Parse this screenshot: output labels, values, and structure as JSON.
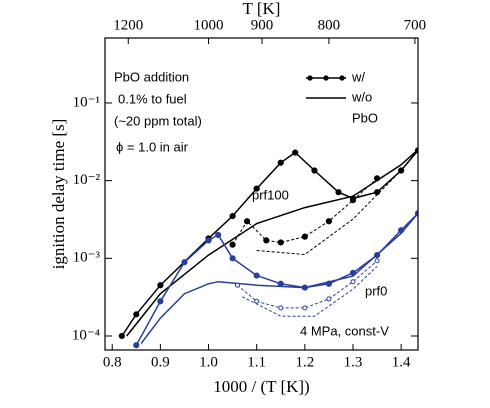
{
  "chart_data": {
    "type": "line",
    "xlabel": "1000 / (T [K])",
    "x2label": "T [K]",
    "ylabel": "ignition delay time [s]",
    "xlim": [
      0.785,
      1.435
    ],
    "xticks": [
      0.8,
      0.9,
      {
        "value": 1,
        "label": "1.0"
      },
      1.1,
      1.2,
      1.3,
      1.4
    ],
    "x2ticks": [
      1200,
      1000,
      900,
      800,
      700
    ],
    "ylim": [
      6.6e-05,
      0.686
    ],
    "yticks": [
      {
        "value": 0.0001,
        "label": "10⁻⁴"
      },
      {
        "value": 0.001,
        "label": "10⁻³"
      },
      {
        "value": 0.01,
        "label": "10⁻²"
      },
      {
        "value": 0.1,
        "label": "10⁻¹"
      }
    ],
    "log_y": true,
    "annotations": [
      "PbO addition",
      "0.1% to fuel",
      "(~20 ppm total)",
      "ϕ = 1.0 in air",
      "prf100",
      "prf0",
      "4 MPa, const-V"
    ],
    "legend": [
      "w/",
      "w/o",
      "PbO"
    ],
    "series": [
      {
        "color": "#000000",
        "marker": "filled",
        "dash": false,
        "x": [
          0.82,
          0.85,
          0.9,
          1.0,
          1.05,
          1.1,
          1.15,
          1.18,
          1.22,
          1.27,
          1.3,
          1.35,
          1.4,
          1.435
        ],
        "values": [
          0.0001,
          0.00019,
          0.00045,
          0.0018,
          0.0035,
          0.0079,
          0.017,
          0.023,
          0.0135,
          0.0071,
          0.0059,
          0.0071,
          0.0135,
          0.0245
        ]
      },
      {
        "color": "#000000",
        "marker": "none",
        "dash": false,
        "x": [
          0.83,
          0.9,
          1.0,
          1.1,
          1.2,
          1.3,
          1.4,
          1.435
        ],
        "values": [
          0.0001,
          0.00035,
          0.0011,
          0.0028,
          0.0045,
          0.0063,
          0.016,
          0.025
        ]
      },
      {
        "color": "#000000",
        "marker": "filled",
        "dash": true,
        "x": [
          1.05,
          1.08,
          1.12,
          1.15,
          1.2,
          1.25,
          1.3,
          1.35
        ],
        "values": [
          0.0015,
          0.003,
          0.0017,
          0.0016,
          0.0019,
          0.003,
          0.0056,
          0.0107
        ]
      },
      {
        "color": "#000000",
        "marker": "none",
        "dash": true,
        "x": [
          1.1,
          1.2,
          1.3,
          1.4
        ],
        "values": [
          0.00126,
          0.00112,
          0.0032,
          0.0135
        ]
      },
      {
        "color": "#2a3f9a",
        "marker": "filled",
        "dash": false,
        "x": [
          0.85,
          0.9,
          0.95,
          1.0,
          1.02,
          1.05,
          1.1,
          1.15,
          1.2,
          1.25,
          1.3,
          1.35,
          1.4,
          1.435
        ],
        "values": [
          7.6e-05,
          0.00028,
          0.00089,
          0.0017,
          0.002,
          0.001,
          0.0006,
          0.00047,
          0.00042,
          0.00047,
          0.00065,
          0.0011,
          0.0023,
          0.0038
        ]
      },
      {
        "color": "#2a3f9a",
        "marker": "none",
        "dash": false,
        "x": [
          0.86,
          0.9,
          0.95,
          1.0,
          1.02,
          1.1,
          1.2,
          1.3,
          1.4,
          1.435
        ],
        "values": [
          8e-05,
          0.00017,
          0.00035,
          0.00047,
          0.0005,
          0.00045,
          0.00042,
          0.00059,
          0.0021,
          0.0038
        ]
      },
      {
        "color": "#2a3f9a",
        "marker": "open",
        "dash": true,
        "x": [
          1.06,
          1.1,
          1.15,
          1.2,
          1.25,
          1.3,
          1.35
        ],
        "values": [
          0.00045,
          0.00028,
          0.00023,
          0.00023,
          0.0003,
          0.0005,
          0.00093
        ]
      },
      {
        "color": "#2a3f9a",
        "marker": "none",
        "dash": true,
        "x": [
          1.07,
          1.15,
          1.22,
          1.3,
          1.35
        ],
        "values": [
          0.00032,
          0.00018,
          0.00018,
          0.0004,
          0.00079
        ]
      }
    ]
  }
}
